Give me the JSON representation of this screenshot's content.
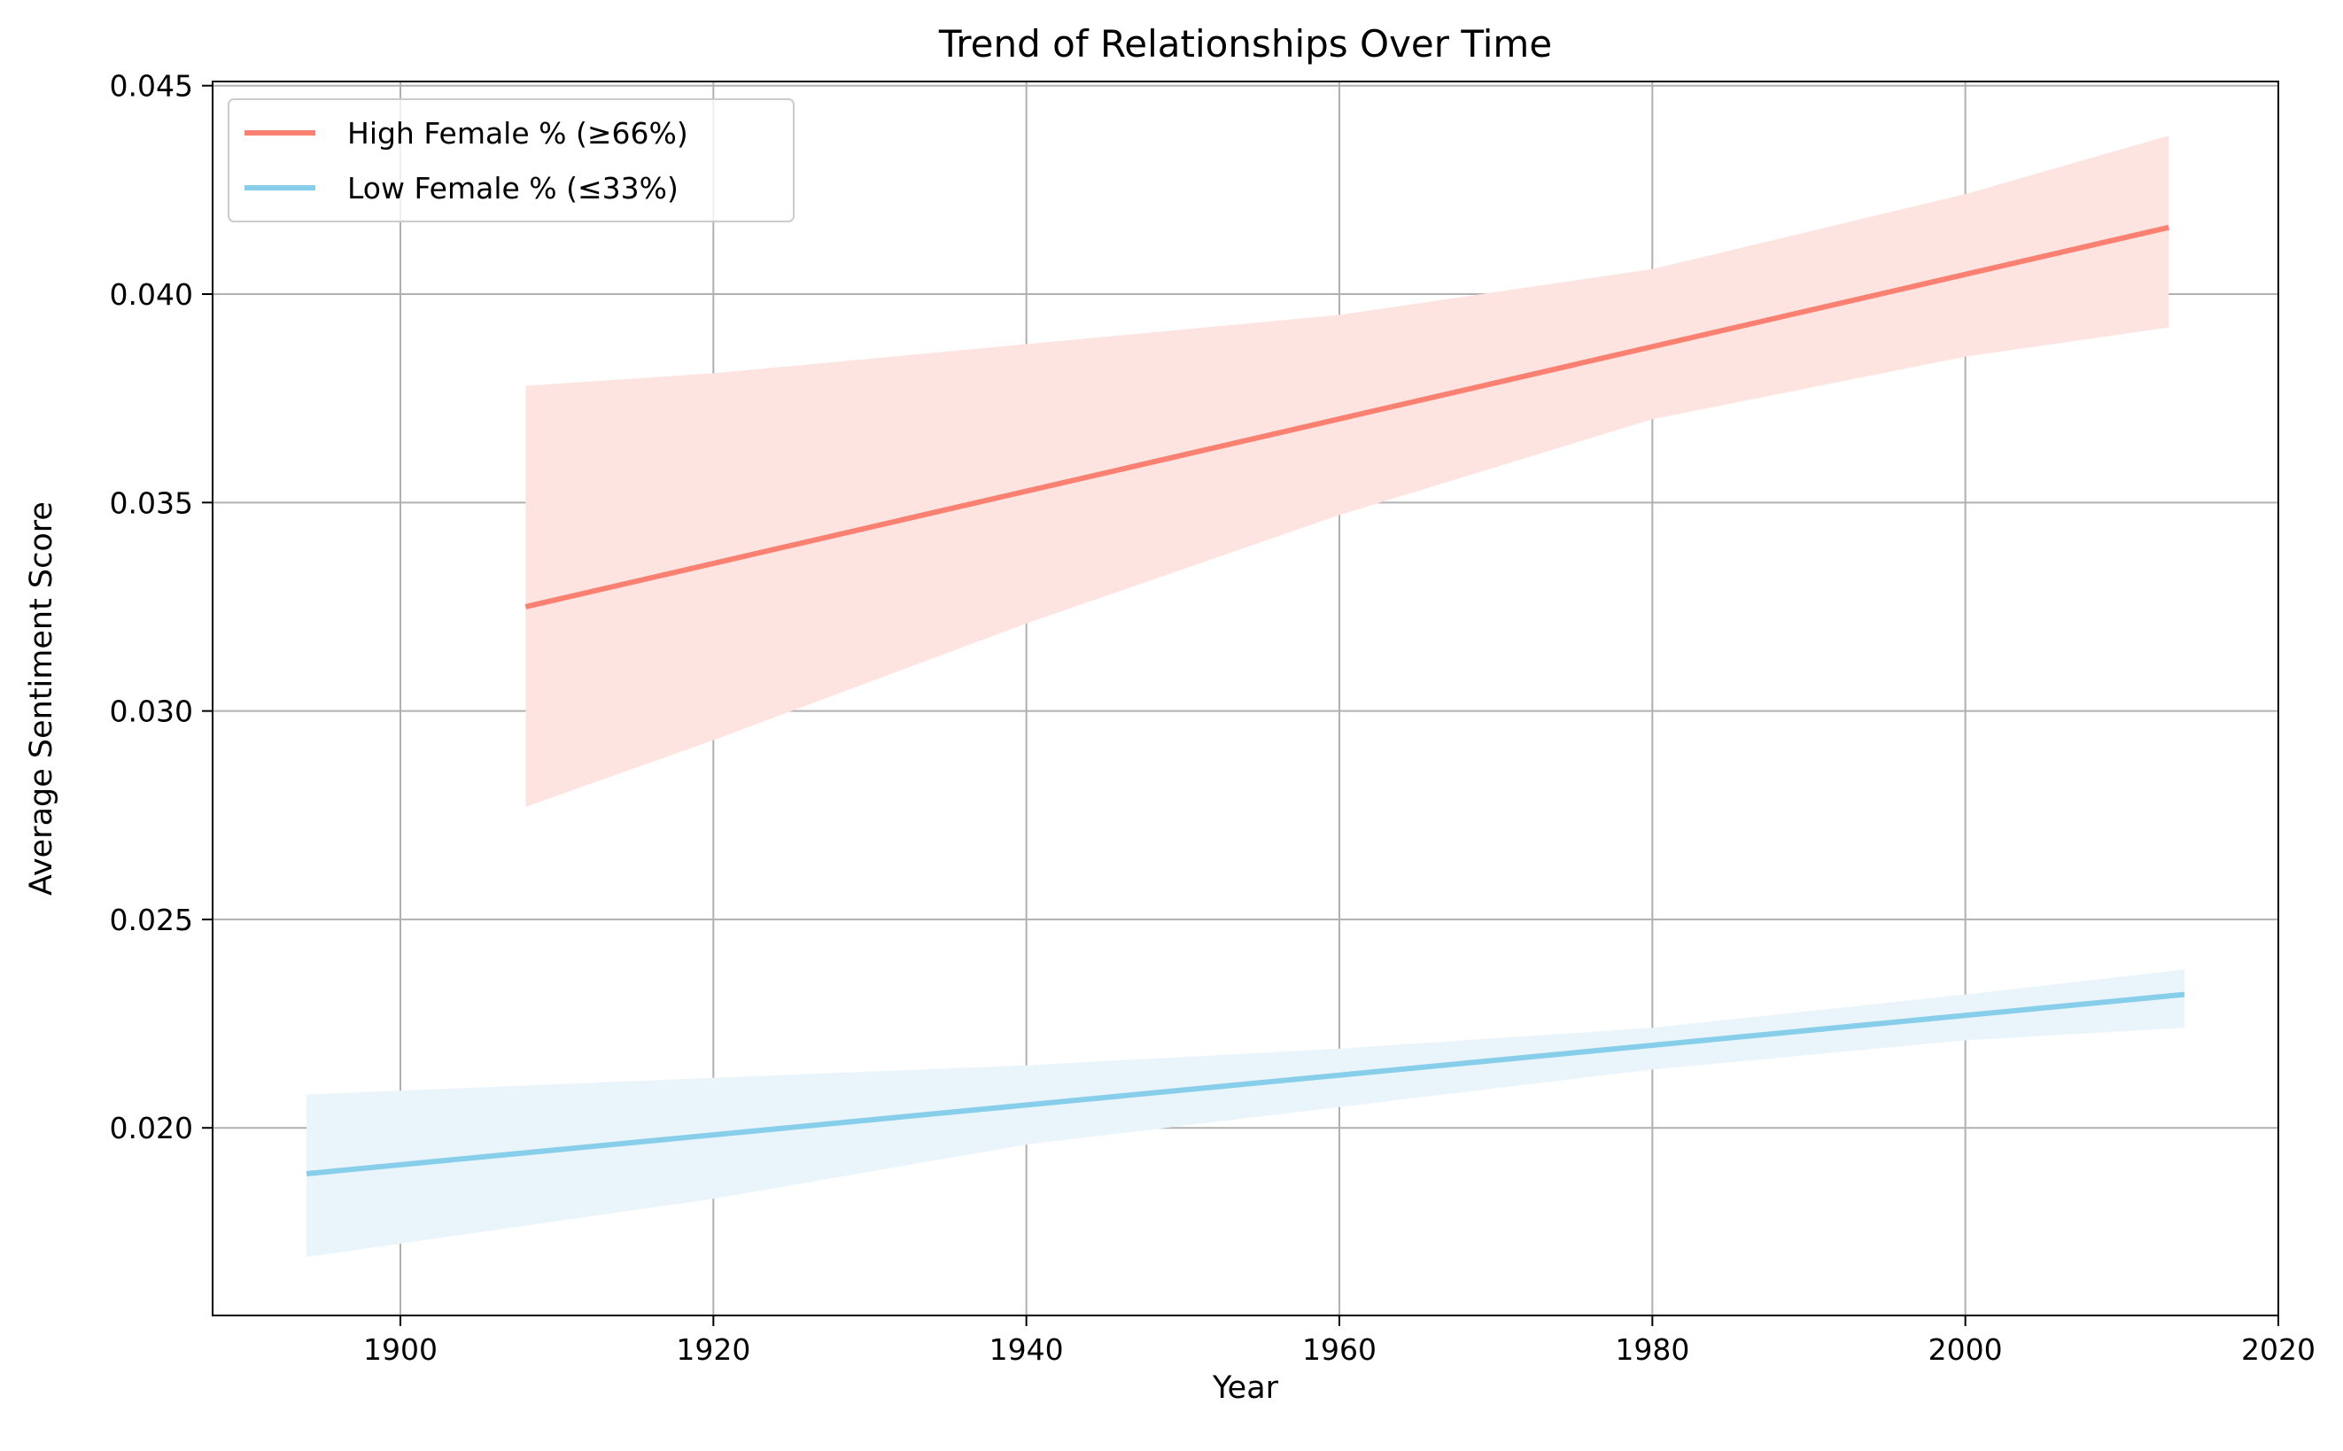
{
  "chart_data": {
    "type": "line",
    "title": "Trend of Relationships Over Time",
    "xlabel": "Year",
    "ylabel": "Average Sentiment Score",
    "xlim": [
      1888,
      2020
    ],
    "ylim": [
      0.0155,
      0.0451
    ],
    "xticks": [
      1900,
      1920,
      1940,
      1960,
      1980,
      2000,
      2020
    ],
    "xtick_labels": [
      "1900",
      "1920",
      "1940",
      "1960",
      "1980",
      "2000",
      "2020"
    ],
    "yticks": [
      0.02,
      0.025,
      0.03,
      0.035,
      0.04,
      0.045
    ],
    "ytick_labels": [
      "0.020",
      "0.025",
      "0.030",
      "0.035",
      "0.040",
      "0.045"
    ],
    "grid": true,
    "legend_position": "top-left",
    "series": [
      {
        "name": "High Female % (≥66%)",
        "color": "#FA8072",
        "band_color": "#FDE4E1",
        "x": [
          1908,
          2013
        ],
        "y": [
          0.0325,
          0.0416
        ],
        "band": {
          "x": [
            1908,
            1920,
            1940,
            1960,
            1980,
            2000,
            2013
          ],
          "upper": [
            0.0378,
            0.0381,
            0.0388,
            0.0395,
            0.0406,
            0.0424,
            0.0438
          ],
          "lower": [
            0.0277,
            0.0293,
            0.0321,
            0.0347,
            0.037,
            0.0385,
            0.0392
          ]
        }
      },
      {
        "name": "Low Female % (≤33%)",
        "color": "#87CEEB",
        "band_color": "#EAF5FB",
        "x": [
          1894,
          2014
        ],
        "y": [
          0.0189,
          0.0232
        ],
        "band": {
          "x": [
            1894,
            1920,
            1940,
            1960,
            1980,
            2000,
            2014
          ],
          "upper": [
            0.0208,
            0.0212,
            0.0215,
            0.0219,
            0.0224,
            0.0232,
            0.0238
          ],
          "lower": [
            0.0169,
            0.0183,
            0.0196,
            0.0205,
            0.0214,
            0.0221,
            0.0224
          ]
        }
      }
    ]
  }
}
